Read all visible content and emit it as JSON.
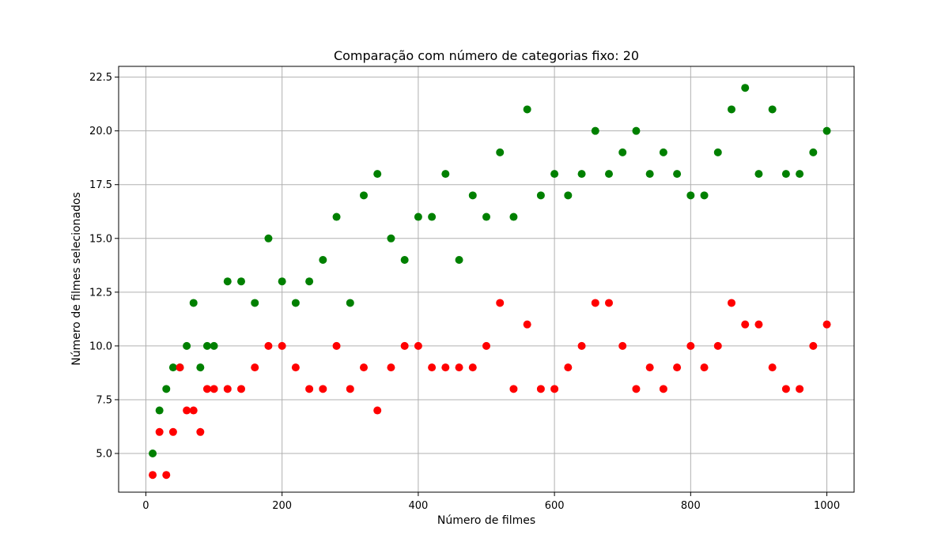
{
  "chart_data": {
    "type": "scatter",
    "title": "Comparação com número de categorias fixo: 20",
    "xlabel": "Número de filmes",
    "ylabel": "Número de filmes selecionados",
    "xlim": [
      -40,
      1040
    ],
    "ylim": [
      3.2,
      23.0
    ],
    "x_ticks": [
      0,
      200,
      400,
      600,
      800,
      1000
    ],
    "x_tick_labels": [
      "0",
      "200",
      "400",
      "600",
      "800",
      "1000"
    ],
    "y_ticks": [
      5.0,
      7.5,
      10.0,
      12.5,
      15.0,
      17.5,
      20.0,
      22.5
    ],
    "y_tick_labels": [
      "5.0",
      "7.5",
      "10.0",
      "12.5",
      "15.0",
      "17.5",
      "20.0",
      "22.5"
    ],
    "grid": true,
    "series": [
      {
        "color": "#008000",
        "points": [
          [
            10,
            5
          ],
          [
            20,
            7
          ],
          [
            30,
            8
          ],
          [
            40,
            9
          ],
          [
            50,
            9
          ],
          [
            60,
            10
          ],
          [
            70,
            12
          ],
          [
            80,
            9
          ],
          [
            90,
            10
          ],
          [
            100,
            10
          ],
          [
            120,
            13
          ],
          [
            140,
            13
          ],
          [
            160,
            12
          ],
          [
            180,
            15
          ],
          [
            200,
            13
          ],
          [
            220,
            12
          ],
          [
            240,
            13
          ],
          [
            260,
            14
          ],
          [
            280,
            16
          ],
          [
            300,
            12
          ],
          [
            320,
            17
          ],
          [
            340,
            18
          ],
          [
            360,
            15
          ],
          [
            380,
            14
          ],
          [
            400,
            16
          ],
          [
            420,
            16
          ],
          [
            440,
            18
          ],
          [
            460,
            14
          ],
          [
            480,
            17
          ],
          [
            500,
            16
          ],
          [
            520,
            19
          ],
          [
            540,
            16
          ],
          [
            560,
            21
          ],
          [
            580,
            17
          ],
          [
            600,
            18
          ],
          [
            620,
            17
          ],
          [
            640,
            18
          ],
          [
            660,
            20
          ],
          [
            680,
            18
          ],
          [
            700,
            19
          ],
          [
            720,
            20
          ],
          [
            740,
            18
          ],
          [
            760,
            19
          ],
          [
            780,
            18
          ],
          [
            800,
            17
          ],
          [
            820,
            17
          ],
          [
            840,
            19
          ],
          [
            860,
            21
          ],
          [
            880,
            22
          ],
          [
            900,
            18
          ],
          [
            920,
            21
          ],
          [
            940,
            18
          ],
          [
            960,
            18
          ],
          [
            980,
            19
          ],
          [
            1000,
            20
          ]
        ]
      },
      {
        "color": "#ff0000",
        "points": [
          [
            10,
            4
          ],
          [
            20,
            6
          ],
          [
            30,
            4
          ],
          [
            40,
            6
          ],
          [
            50,
            9
          ],
          [
            60,
            7
          ],
          [
            70,
            7
          ],
          [
            80,
            6
          ],
          [
            90,
            8
          ],
          [
            100,
            8
          ],
          [
            120,
            8
          ],
          [
            140,
            8
          ],
          [
            160,
            9
          ],
          [
            180,
            10
          ],
          [
            200,
            10
          ],
          [
            220,
            9
          ],
          [
            240,
            8
          ],
          [
            260,
            8
          ],
          [
            280,
            10
          ],
          [
            300,
            8
          ],
          [
            320,
            9
          ],
          [
            340,
            7
          ],
          [
            360,
            9
          ],
          [
            380,
            10
          ],
          [
            400,
            10
          ],
          [
            420,
            9
          ],
          [
            440,
            9
          ],
          [
            460,
            9
          ],
          [
            480,
            9
          ],
          [
            500,
            10
          ],
          [
            520,
            12
          ],
          [
            540,
            8
          ],
          [
            560,
            11
          ],
          [
            580,
            8
          ],
          [
            600,
            8
          ],
          [
            620,
            9
          ],
          [
            640,
            10
          ],
          [
            660,
            12
          ],
          [
            680,
            12
          ],
          [
            700,
            10
          ],
          [
            720,
            8
          ],
          [
            740,
            9
          ],
          [
            760,
            8
          ],
          [
            780,
            9
          ],
          [
            800,
            10
          ],
          [
            820,
            9
          ],
          [
            840,
            10
          ],
          [
            860,
            12
          ],
          [
            880,
            11
          ],
          [
            900,
            11
          ],
          [
            920,
            9
          ],
          [
            940,
            8
          ],
          [
            960,
            8
          ],
          [
            980,
            10
          ],
          [
            1000,
            11
          ]
        ]
      }
    ]
  }
}
